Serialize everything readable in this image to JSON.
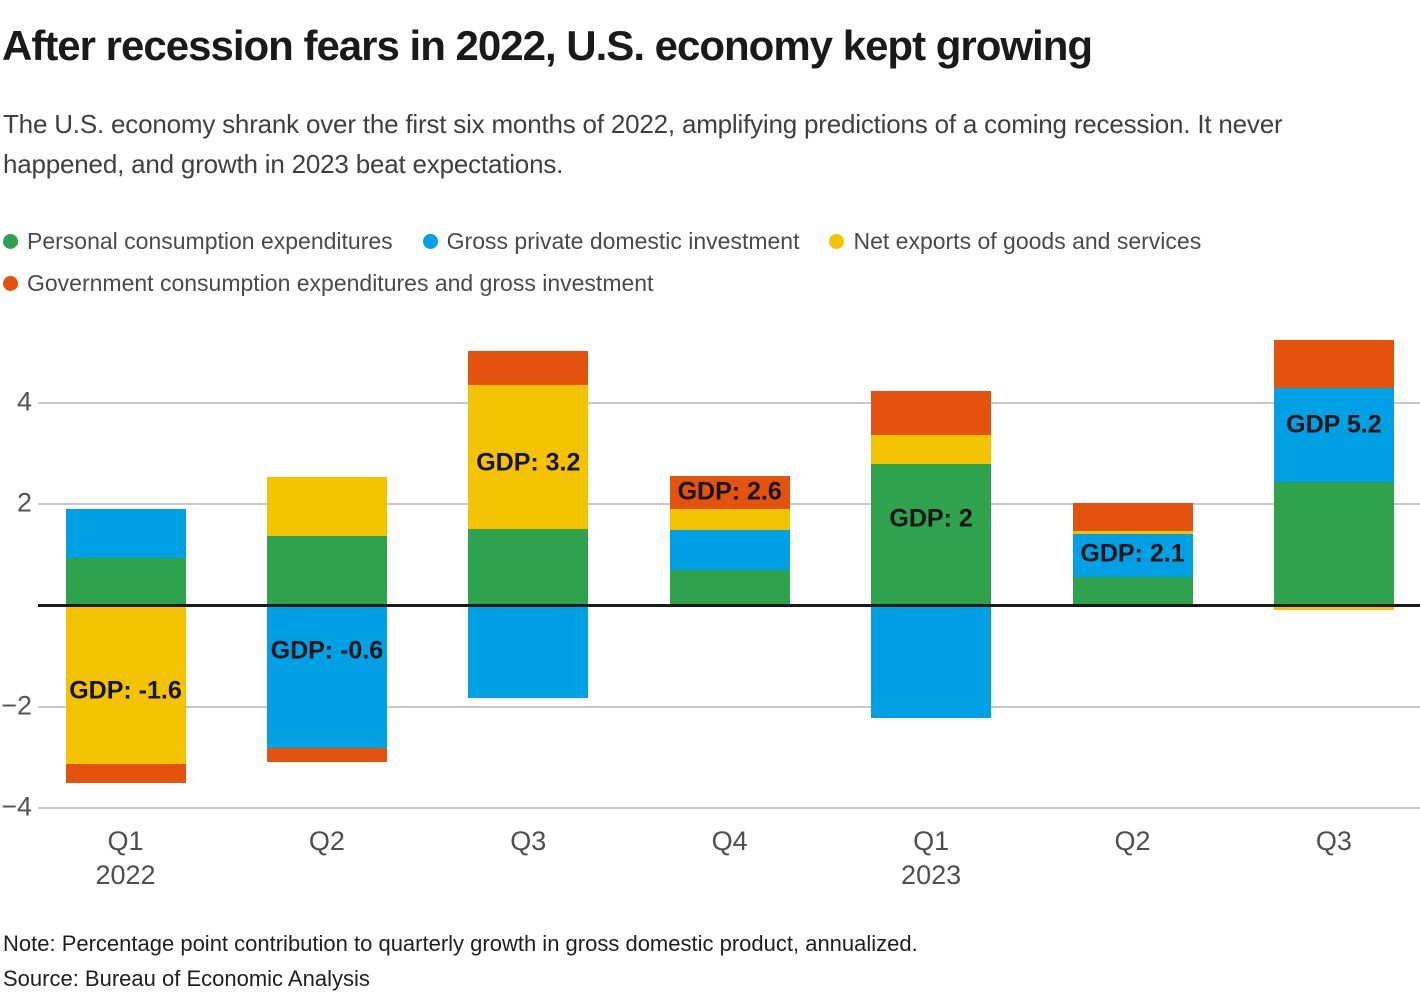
{
  "header": {
    "title": "After recession fears in 2022, U.S. economy kept growing",
    "subtitle": "The U.S. economy shrank over the first six months of 2022, amplifying predictions of a coming recession. It never happened, and growth in 2023 beat expectations."
  },
  "legend": [
    {
      "label": "Personal consumption expenditures",
      "color": "#2FA24D"
    },
    {
      "label": "Gross private domestic investment",
      "color": "#00A0E4"
    },
    {
      "label": "Net exports of goods and services",
      "color": "#F3C300"
    },
    {
      "label": "Government consumption expenditures and gross investment",
      "color": "#E4530E"
    }
  ],
  "chart_data": {
    "type": "bar",
    "stacked": true,
    "title": "After recession fears in 2022, U.S. economy kept growing",
    "ylabel": "Percentage point contribution to quarterly GDP growth, annualized",
    "ylim": [
      -4.35,
      5.55
    ],
    "grid": true,
    "zero_line": true,
    "legend_position": "top",
    "categories": [
      {
        "quarter": "Q1",
        "year": "2022"
      },
      {
        "quarter": "Q2",
        "year": ""
      },
      {
        "quarter": "Q3",
        "year": ""
      },
      {
        "quarter": "Q4",
        "year": ""
      },
      {
        "quarter": "Q1",
        "year": "2023"
      },
      {
        "quarter": "Q2",
        "year": ""
      },
      {
        "quarter": "Q3",
        "year": ""
      }
    ],
    "series": [
      {
        "name": "Personal consumption expenditures",
        "color": "#2FA24D",
        "values": [
          0.93,
          1.38,
          1.52,
          0.7,
          2.79,
          0.56,
          2.45
        ]
      },
      {
        "name": "Gross private domestic investment",
        "color": "#00A0E4",
        "values": [
          0.98,
          -2.81,
          -1.82,
          0.8,
          -2.22,
          0.86,
          1.85
        ]
      },
      {
        "name": "Net exports of goods and services",
        "color": "#F3C300",
        "values": [
          -3.13,
          1.16,
          2.85,
          0.4,
          0.59,
          0.06,
          -0.08
        ]
      },
      {
        "name": "Government consumption expenditures and gross investment",
        "color": "#E4530E",
        "values": [
          -0.38,
          -0.29,
          0.67,
          0.67,
          0.86,
          0.55,
          0.95
        ]
      }
    ],
    "gdp_labels": [
      {
        "text": "GDP: -1.6",
        "value": -1.6,
        "anchor": -1.7
      },
      {
        "text": "GDP: -0.6",
        "value": -0.6,
        "anchor": -0.9
      },
      {
        "text": "GDP: 3.2",
        "value": 3.2,
        "anchor": 2.82
      },
      {
        "text": "GDP: 2.6",
        "value": 2.6,
        "anchor": 2.25
      },
      {
        "text": "GDP: 2",
        "value": 2,
        "anchor": 1.72
      },
      {
        "text": "GDP: 2.1",
        "value": 2.1,
        "anchor": 1.02
      },
      {
        "text": "GDP 5.2",
        "value": 5.2,
        "anchor": 3.57
      }
    ],
    "yticks": [
      {
        "label": "4",
        "value": 4
      },
      {
        "label": "2",
        "value": 2
      },
      {
        "label": "−2",
        "value": -2
      },
      {
        "label": "−4",
        "value": -4
      }
    ]
  },
  "footer": {
    "note": "Note: Percentage point contribution to quarterly growth in gross domestic product, annualized.",
    "source": "Source: Bureau of Economic Analysis"
  }
}
